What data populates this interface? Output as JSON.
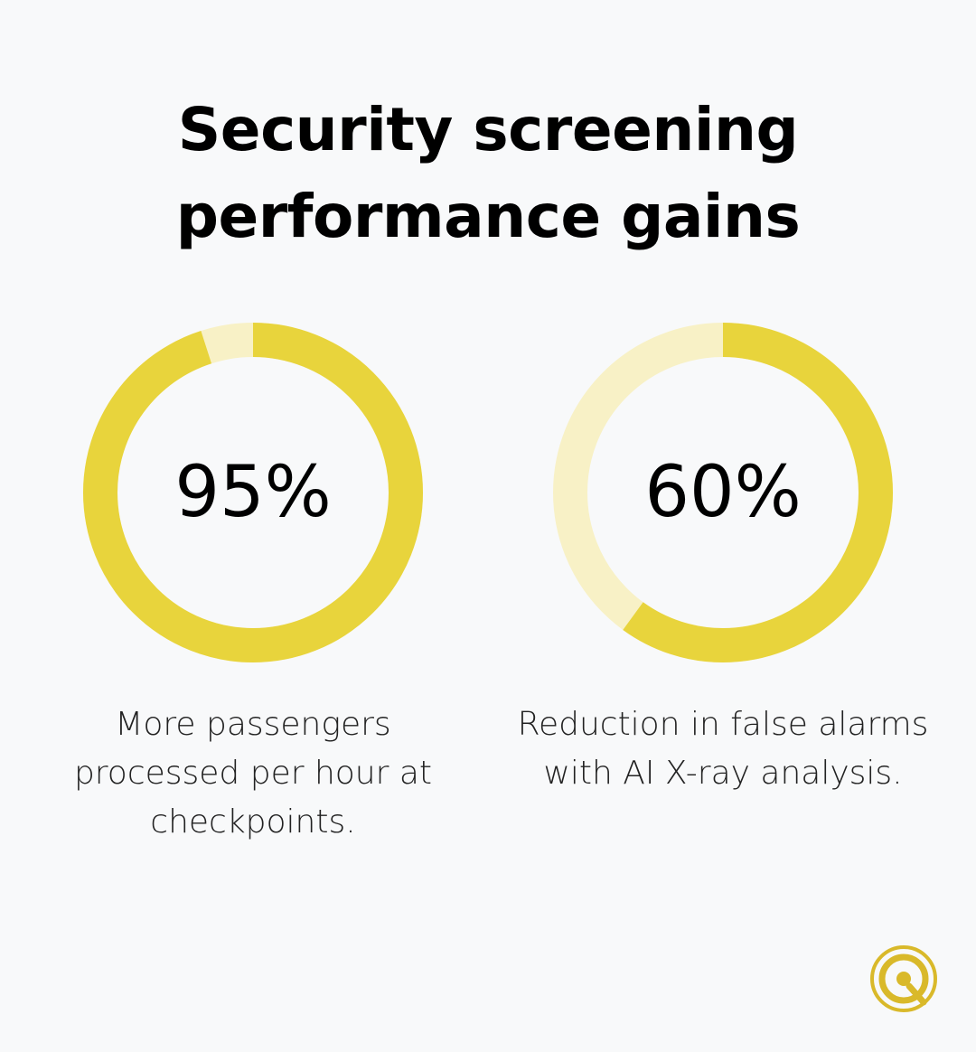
{
  "title": {
    "line1": "Security screening",
    "line2": "performance gains"
  },
  "colors": {
    "background": "#f8f9fa",
    "ring_fill": "#e8d43c",
    "ring_track": "#f8f1c6",
    "logo_gold": "#d9b92a"
  },
  "chart_data": [
    {
      "type": "pie",
      "style": "donut",
      "value": 95,
      "value_label": "95%",
      "caption_lines": [
        "More passengers",
        "processed per hour at",
        "checkpoints."
      ]
    },
    {
      "type": "pie",
      "style": "donut",
      "value": 60,
      "value_label": "60%",
      "caption_lines": [
        "Reduction in false alarms",
        "with AI X-ray analysis."
      ]
    }
  ],
  "logo": {
    "icon": "q-logo-icon"
  }
}
